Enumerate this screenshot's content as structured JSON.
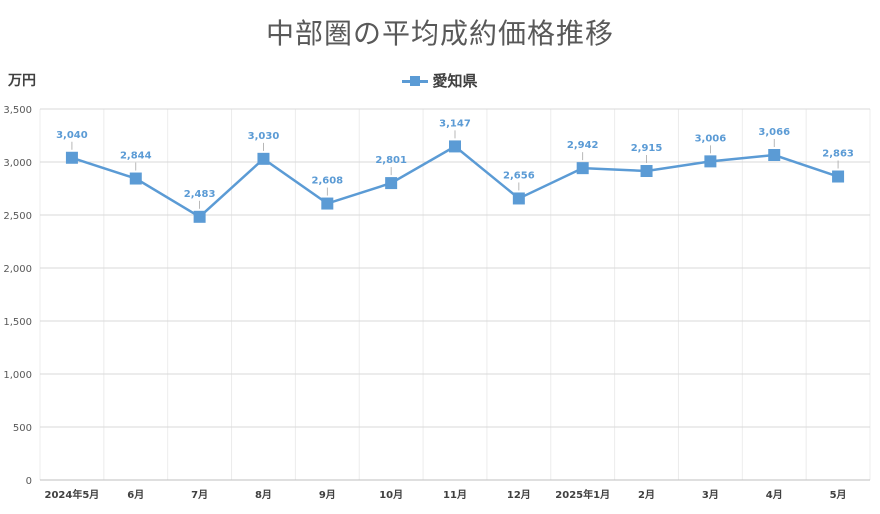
{
  "chart_data": {
    "type": "line",
    "title": "中部圏の平均成約価格推移",
    "ylabel": "万円",
    "categories": [
      "2024年5月",
      "6月",
      "7月",
      "8月",
      "9月",
      "10月",
      "11月",
      "12月",
      "2025年1月",
      "2月",
      "3月",
      "4月",
      "5月"
    ],
    "series": [
      {
        "name": "愛知県",
        "values": [
          3040,
          2844,
          2483,
          3030,
          2608,
          2801,
          3147,
          2656,
          2942,
          2915,
          3006,
          3066,
          2863
        ],
        "labels": [
          "3,040",
          "2,844",
          "2,483",
          "3,030",
          "2,608",
          "2,801",
          "3,147",
          "2,656",
          "2,942",
          "2,915",
          "3,006",
          "3,066",
          "2,863"
        ],
        "color": "#5b9bd5"
      }
    ],
    "ylim": [
      0,
      3500
    ],
    "yticks": [
      0,
      500,
      1000,
      1500,
      2000,
      2500,
      3000,
      3500
    ],
    "ytick_labels": [
      "0",
      "500",
      "1,000",
      "1,500",
      "2,000",
      "2,500",
      "3,000",
      "3,500"
    ],
    "grid": true,
    "legend_position": "top-center"
  }
}
